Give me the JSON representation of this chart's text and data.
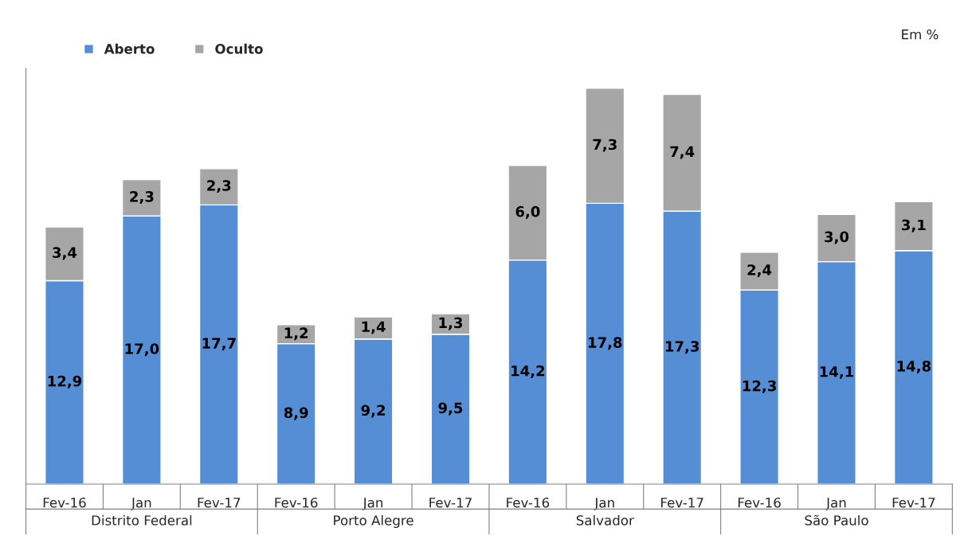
{
  "chart_data": {
    "type": "bar",
    "stacked": true,
    "categories": [
      "Fev-16",
      "Jan",
      "Fev-17",
      "Fev-16",
      "Jan",
      "Fev-17",
      "Fev-16",
      "Jan",
      "Fev-17",
      "Fev-16",
      "Jan",
      "Fev-17"
    ],
    "series": [
      {
        "name": "Aberto",
        "color": "#558ed5",
        "values": [
          12.9,
          17.0,
          17.7,
          8.9,
          9.2,
          9.5,
          14.2,
          17.8,
          17.3,
          12.3,
          14.1,
          14.8
        ],
        "value_labels": [
          "12,9",
          "17,0",
          "17,7",
          "8,9",
          "9,2",
          "9,5",
          "14,2",
          "17,8",
          "17,3",
          "12,3",
          "14,1",
          "14,8"
        ]
      },
      {
        "name": "Oculto",
        "color": "#a6a6a6",
        "values": [
          3.4,
          2.3,
          2.3,
          1.2,
          1.4,
          1.3,
          6.0,
          7.3,
          7.4,
          2.4,
          3.0,
          3.1
        ],
        "value_labels": [
          "3,4",
          "2,3",
          "2,3",
          "1,2",
          "1,4",
          "1,3",
          "6,0",
          "7,3",
          "7,4",
          "2,4",
          "3,0",
          "3,1"
        ]
      }
    ],
    "legend": "top left",
    "annotations": [
      "Em %",
      "Distrito Federal",
      "Porto Alegre",
      "Salvador",
      "São Paulo"
    ]
  }
}
